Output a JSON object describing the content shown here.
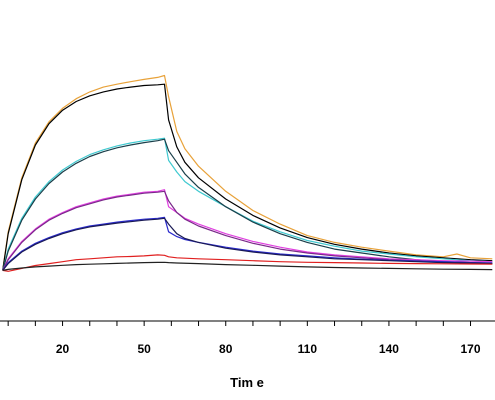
{
  "chart_data": {
    "type": "line",
    "title": "",
    "xlabel": "Tim e",
    "ylabel": "",
    "xlim": [
      -3,
      179
    ],
    "ylim": [
      -0.05,
      1.08
    ],
    "x_ticks": [
      20,
      50,
      80,
      110,
      140,
      170
    ],
    "grid": false,
    "series": [
      {
        "color": "#e8a23a",
        "points": [
          [
            -2,
            0
          ],
          [
            0,
            0.2
          ],
          [
            5,
            0.48
          ],
          [
            10,
            0.66
          ],
          [
            15,
            0.77
          ],
          [
            20,
            0.84
          ],
          [
            25,
            0.89
          ],
          [
            30,
            0.925
          ],
          [
            35,
            0.95
          ],
          [
            40,
            0.965
          ],
          [
            45,
            0.978
          ],
          [
            50,
            0.99
          ],
          [
            55,
            1.0
          ],
          [
            57.5,
            1.01
          ],
          [
            59,
            0.9
          ],
          [
            62,
            0.72
          ],
          [
            65,
            0.63
          ],
          [
            70,
            0.54
          ],
          [
            80,
            0.41
          ],
          [
            90,
            0.31
          ],
          [
            100,
            0.24
          ],
          [
            110,
            0.18
          ],
          [
            120,
            0.145
          ],
          [
            130,
            0.12
          ],
          [
            140,
            0.1
          ],
          [
            150,
            0.08
          ],
          [
            160,
            0.07
          ],
          [
            165,
            0.085
          ],
          [
            170,
            0.065
          ],
          [
            178,
            0.06
          ]
        ]
      },
      {
        "color": "#000000",
        "points": [
          [
            -2,
            0
          ],
          [
            0,
            0.19
          ],
          [
            5,
            0.47
          ],
          [
            10,
            0.65
          ],
          [
            15,
            0.76
          ],
          [
            20,
            0.83
          ],
          [
            25,
            0.875
          ],
          [
            30,
            0.905
          ],
          [
            35,
            0.925
          ],
          [
            40,
            0.94
          ],
          [
            45,
            0.95
          ],
          [
            50,
            0.958
          ],
          [
            55,
            0.962
          ],
          [
            57.5,
            0.965
          ],
          [
            59,
            0.78
          ],
          [
            62,
            0.64
          ],
          [
            65,
            0.56
          ],
          [
            70,
            0.48
          ],
          [
            80,
            0.37
          ],
          [
            90,
            0.285
          ],
          [
            100,
            0.22
          ],
          [
            110,
            0.17
          ],
          [
            120,
            0.135
          ],
          [
            130,
            0.11
          ],
          [
            140,
            0.09
          ],
          [
            150,
            0.075
          ],
          [
            160,
            0.065
          ],
          [
            170,
            0.055
          ],
          [
            178,
            0.05
          ]
        ]
      },
      {
        "color": "#3fc9d0",
        "points": [
          [
            -2,
            0
          ],
          [
            0,
            0.11
          ],
          [
            5,
            0.27
          ],
          [
            10,
            0.38
          ],
          [
            15,
            0.46
          ],
          [
            20,
            0.52
          ],
          [
            25,
            0.565
          ],
          [
            30,
            0.6
          ],
          [
            35,
            0.625
          ],
          [
            40,
            0.645
          ],
          [
            45,
            0.66
          ],
          [
            50,
            0.672
          ],
          [
            55,
            0.68
          ],
          [
            57.5,
            0.685
          ],
          [
            59,
            0.57
          ],
          [
            62,
            0.51
          ],
          [
            65,
            0.46
          ],
          [
            70,
            0.41
          ],
          [
            80,
            0.33
          ],
          [
            90,
            0.255
          ],
          [
            100,
            0.2
          ],
          [
            110,
            0.155
          ],
          [
            120,
            0.125
          ],
          [
            130,
            0.1
          ],
          [
            140,
            0.085
          ],
          [
            150,
            0.07
          ],
          [
            160,
            0.06
          ],
          [
            170,
            0.05
          ],
          [
            178,
            0.045
          ]
        ]
      },
      {
        "color": "#1a3f4a",
        "points": [
          [
            -2,
            0
          ],
          [
            0,
            0.1
          ],
          [
            5,
            0.26
          ],
          [
            10,
            0.37
          ],
          [
            15,
            0.45
          ],
          [
            20,
            0.51
          ],
          [
            25,
            0.555
          ],
          [
            30,
            0.59
          ],
          [
            35,
            0.615
          ],
          [
            40,
            0.635
          ],
          [
            45,
            0.65
          ],
          [
            50,
            0.662
          ],
          [
            55,
            0.672
          ],
          [
            57.5,
            0.68
          ],
          [
            59,
            0.62
          ],
          [
            62,
            0.56
          ],
          [
            65,
            0.5
          ],
          [
            70,
            0.43
          ],
          [
            80,
            0.33
          ],
          [
            90,
            0.25
          ],
          [
            100,
            0.19
          ],
          [
            110,
            0.145
          ],
          [
            120,
            0.11
          ],
          [
            130,
            0.09
          ],
          [
            140,
            0.07
          ],
          [
            150,
            0.055
          ],
          [
            160,
            0.045
          ],
          [
            170,
            0.04
          ],
          [
            178,
            0.035
          ]
        ]
      },
      {
        "color": "#e040e0",
        "points": [
          [
            -2,
            0
          ],
          [
            0,
            0.06
          ],
          [
            5,
            0.15
          ],
          [
            10,
            0.215
          ],
          [
            15,
            0.265
          ],
          [
            20,
            0.3
          ],
          [
            25,
            0.33
          ],
          [
            30,
            0.35
          ],
          [
            35,
            0.37
          ],
          [
            40,
            0.385
          ],
          [
            45,
            0.395
          ],
          [
            50,
            0.405
          ],
          [
            55,
            0.41
          ],
          [
            57.5,
            0.418
          ],
          [
            59,
            0.33
          ],
          [
            62,
            0.3
          ],
          [
            65,
            0.27
          ],
          [
            70,
            0.24
          ],
          [
            80,
            0.19
          ],
          [
            90,
            0.15
          ],
          [
            100,
            0.12
          ],
          [
            110,
            0.095
          ],
          [
            120,
            0.08
          ],
          [
            130,
            0.07
          ],
          [
            140,
            0.06
          ],
          [
            150,
            0.055
          ],
          [
            160,
            0.05
          ],
          [
            170,
            0.048
          ],
          [
            178,
            0.045
          ]
        ]
      },
      {
        "color": "#7a2a8a",
        "points": [
          [
            -2,
            0
          ],
          [
            0,
            0.055
          ],
          [
            5,
            0.145
          ],
          [
            10,
            0.21
          ],
          [
            15,
            0.26
          ],
          [
            20,
            0.295
          ],
          [
            25,
            0.325
          ],
          [
            30,
            0.345
          ],
          [
            35,
            0.365
          ],
          [
            40,
            0.38
          ],
          [
            45,
            0.39
          ],
          [
            50,
            0.4
          ],
          [
            55,
            0.405
          ],
          [
            57.5,
            0.41
          ],
          [
            59,
            0.36
          ],
          [
            62,
            0.3
          ],
          [
            65,
            0.265
          ],
          [
            70,
            0.23
          ],
          [
            80,
            0.18
          ],
          [
            90,
            0.14
          ],
          [
            100,
            0.11
          ],
          [
            110,
            0.09
          ],
          [
            120,
            0.075
          ],
          [
            130,
            0.065
          ],
          [
            140,
            0.055
          ],
          [
            150,
            0.05
          ],
          [
            160,
            0.045
          ],
          [
            170,
            0.04
          ],
          [
            178,
            0.038
          ]
        ]
      },
      {
        "color": "#2a2acc",
        "points": [
          [
            -2,
            0
          ],
          [
            0,
            0.04
          ],
          [
            5,
            0.1
          ],
          [
            10,
            0.14
          ],
          [
            15,
            0.17
          ],
          [
            20,
            0.195
          ],
          [
            25,
            0.215
          ],
          [
            30,
            0.23
          ],
          [
            35,
            0.24
          ],
          [
            40,
            0.25
          ],
          [
            45,
            0.258
          ],
          [
            50,
            0.265
          ],
          [
            55,
            0.27
          ],
          [
            57.5,
            0.275
          ],
          [
            59,
            0.2
          ],
          [
            62,
            0.175
          ],
          [
            65,
            0.16
          ],
          [
            70,
            0.145
          ],
          [
            80,
            0.12
          ],
          [
            90,
            0.1
          ],
          [
            100,
            0.085
          ],
          [
            110,
            0.075
          ],
          [
            120,
            0.065
          ],
          [
            130,
            0.058
          ],
          [
            140,
            0.052
          ],
          [
            150,
            0.048
          ],
          [
            160,
            0.045
          ],
          [
            170,
            0.04
          ],
          [
            178,
            0.038
          ]
        ]
      },
      {
        "color": "#1a1a55",
        "points": [
          [
            -2,
            0
          ],
          [
            0,
            0.035
          ],
          [
            5,
            0.095
          ],
          [
            10,
            0.135
          ],
          [
            15,
            0.165
          ],
          [
            20,
            0.19
          ],
          [
            25,
            0.21
          ],
          [
            30,
            0.225
          ],
          [
            35,
            0.235
          ],
          [
            40,
            0.245
          ],
          [
            45,
            0.252
          ],
          [
            50,
            0.26
          ],
          [
            55,
            0.265
          ],
          [
            57.5,
            0.27
          ],
          [
            59,
            0.24
          ],
          [
            62,
            0.19
          ],
          [
            65,
            0.165
          ],
          [
            70,
            0.145
          ],
          [
            80,
            0.115
          ],
          [
            90,
            0.095
          ],
          [
            100,
            0.08
          ],
          [
            110,
            0.07
          ],
          [
            120,
            0.06
          ],
          [
            130,
            0.055
          ],
          [
            140,
            0.05
          ],
          [
            150,
            0.045
          ],
          [
            160,
            0.04
          ],
          [
            170,
            0.038
          ],
          [
            178,
            0.035
          ]
        ]
      },
      {
        "color": "#e02020",
        "points": [
          [
            -2,
            0
          ],
          [
            0,
            -0.005
          ],
          [
            5,
            0.01
          ],
          [
            10,
            0.025
          ],
          [
            15,
            0.035
          ],
          [
            20,
            0.045
          ],
          [
            25,
            0.055
          ],
          [
            30,
            0.06
          ],
          [
            35,
            0.065
          ],
          [
            40,
            0.07
          ],
          [
            45,
            0.072
          ],
          [
            50,
            0.075
          ],
          [
            55,
            0.08
          ],
          [
            57.5,
            0.078
          ],
          [
            59,
            0.07
          ],
          [
            62,
            0.065
          ],
          [
            70,
            0.06
          ],
          [
            80,
            0.055
          ],
          [
            90,
            0.05
          ],
          [
            100,
            0.045
          ],
          [
            110,
            0.042
          ],
          [
            120,
            0.04
          ],
          [
            130,
            0.038
          ],
          [
            140,
            0.036
          ],
          [
            150,
            0.035
          ],
          [
            160,
            0.034
          ],
          [
            170,
            0.033
          ],
          [
            178,
            0.032
          ]
        ]
      },
      {
        "color": "#222222",
        "points": [
          [
            -2,
            0
          ],
          [
            0,
            0.005
          ],
          [
            5,
            0.012
          ],
          [
            10,
            0.018
          ],
          [
            15,
            0.022
          ],
          [
            20,
            0.026
          ],
          [
            25,
            0.03
          ],
          [
            30,
            0.032
          ],
          [
            35,
            0.034
          ],
          [
            40,
            0.036
          ],
          [
            45,
            0.038
          ],
          [
            50,
            0.04
          ],
          [
            55,
            0.041
          ],
          [
            57.5,
            0.042
          ],
          [
            59,
            0.04
          ],
          [
            62,
            0.038
          ],
          [
            70,
            0.035
          ],
          [
            80,
            0.03
          ],
          [
            90,
            0.026
          ],
          [
            100,
            0.022
          ],
          [
            110,
            0.018
          ],
          [
            120,
            0.015
          ],
          [
            130,
            0.012
          ],
          [
            140,
            0.01
          ],
          [
            150,
            0.008
          ],
          [
            160,
            0.006
          ],
          [
            170,
            0.005
          ],
          [
            178,
            0.004
          ]
        ]
      }
    ]
  }
}
